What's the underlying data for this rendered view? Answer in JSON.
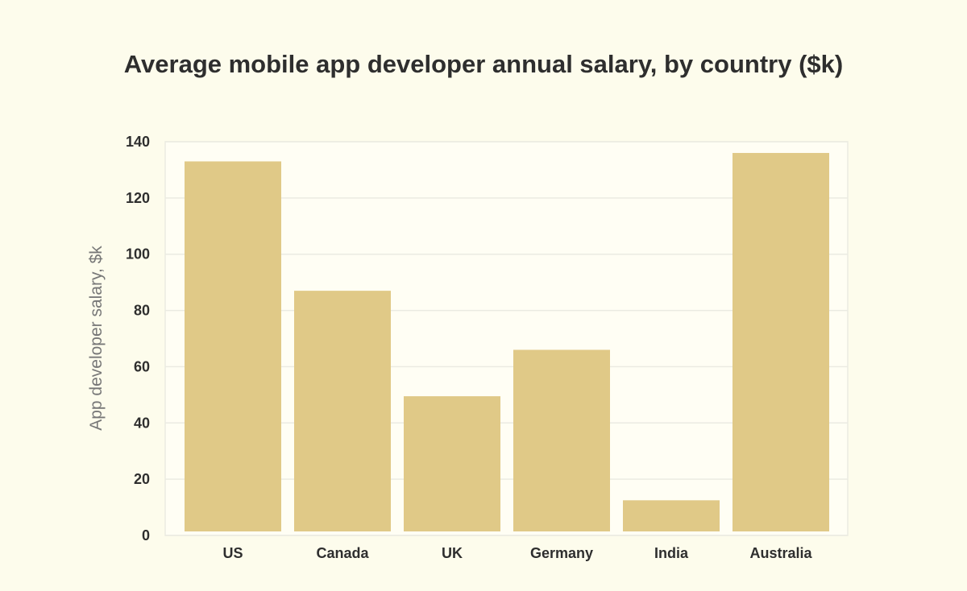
{
  "chart_data": {
    "type": "bar",
    "title": "Average mobile app developer annual salary, by country ($k)",
    "xlabel": "",
    "ylabel": "App developer salary, $k",
    "categories": [
      "US",
      "Canada",
      "UK",
      "Germany",
      "India",
      "Australia"
    ],
    "values": [
      133,
      87,
      49.5,
      66,
      12.5,
      136
    ],
    "ylim": [
      0,
      140
    ],
    "yticks": [
      0,
      20,
      40,
      60,
      80,
      100,
      120,
      140
    ],
    "grid": true,
    "colors": {
      "bar": "#e0c987",
      "grid": "#ebebe2",
      "background": "#fdfcec"
    }
  }
}
